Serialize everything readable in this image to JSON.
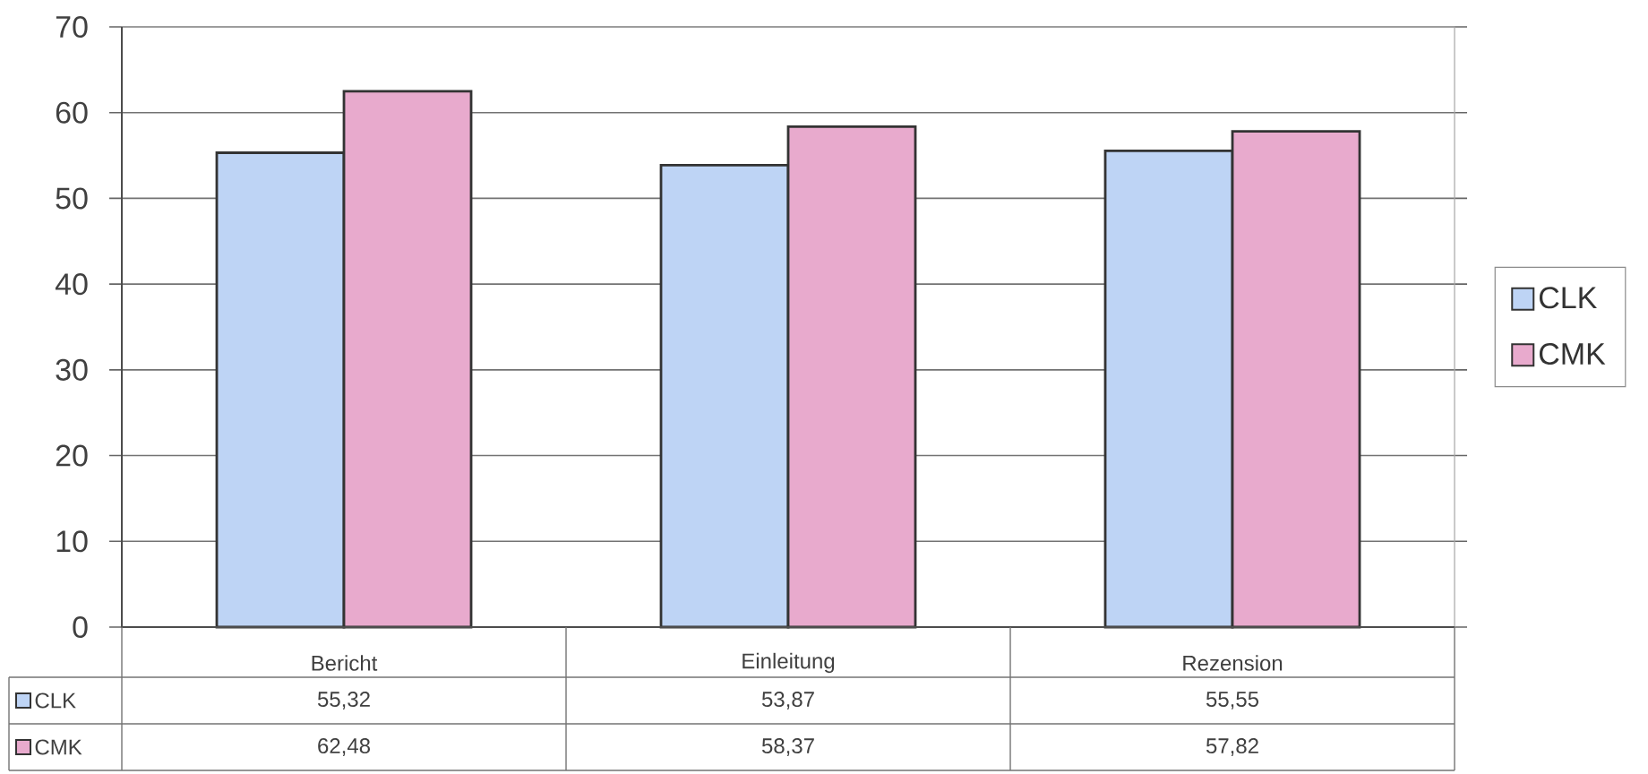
{
  "chart_data": {
    "type": "bar",
    "categories": [
      "Bericht",
      "Einleitung",
      "Rezension"
    ],
    "series": [
      {
        "name": "CLK",
        "color": "#bed4f5",
        "values": [
          55.32,
          53.87,
          55.55
        ],
        "value_labels": [
          "55,32",
          "53,87",
          "55,55"
        ]
      },
      {
        "name": "CMK",
        "color": "#e8aacd",
        "values": [
          62.48,
          58.37,
          57.82
        ],
        "value_labels": [
          "62,48",
          "58,37",
          "57,82"
        ]
      }
    ],
    "ylim": [
      0,
      70
    ],
    "yticks": [
      0,
      10,
      20,
      30,
      40,
      50,
      60,
      70
    ],
    "grid": "y",
    "legend": "right"
  }
}
